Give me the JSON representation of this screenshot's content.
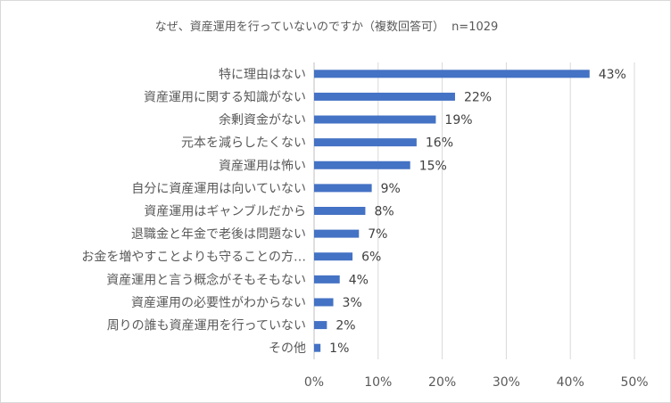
{
  "chart_data": {
    "type": "bar",
    "orientation": "horizontal",
    "title": "なぜ、資産運用を行っていないのですか（複数回答可）",
    "subtitle": "n=1029",
    "categories": [
      "特に理由はない",
      "資産運用に関する知識がない",
      "余剰資金がない",
      "元本を減らしたくない",
      "資産運用は怖い",
      "自分に資産運用は向いていない",
      "資産運用はギャンブルだから",
      "退職金と年金で老後は問題ない",
      "お金を増やすことよりも守ることの方…",
      "資産運用と言う概念がそもそもない",
      "資産運用の必要性がわからない",
      "周りの誰も資産運用を行っていない",
      "その他"
    ],
    "values": [
      43,
      22,
      19,
      16,
      15,
      9,
      8,
      7,
      6,
      4,
      3,
      2,
      1
    ],
    "data_labels": [
      "43%",
      "22%",
      "19%",
      "16%",
      "15%",
      "9%",
      "8%",
      "7%",
      "6%",
      "4%",
      "3%",
      "2%",
      "1%"
    ],
    "xlim": [
      0,
      50
    ],
    "x_ticks": [
      "0%",
      "10%",
      "20%",
      "30%",
      "40%",
      "50%"
    ],
    "grid": "vertical",
    "legend": "none",
    "colors": {
      "bar": "#4472C4",
      "grid": "#D9D9D9",
      "text": "#595959",
      "border": "#D9D9D9"
    }
  }
}
